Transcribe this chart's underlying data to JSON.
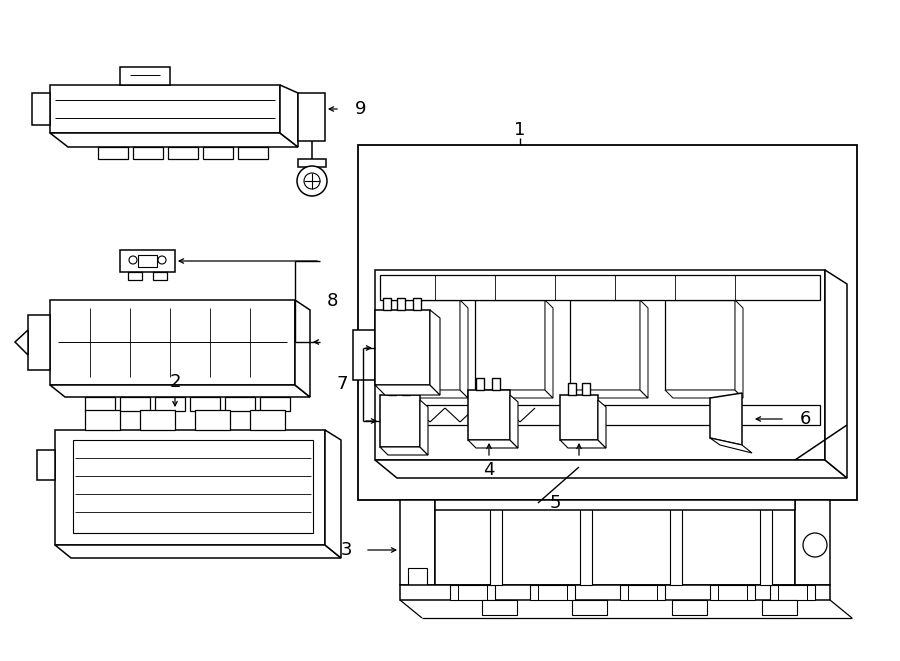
{
  "bg": "#ffffff",
  "lc": "#000000",
  "fig_w": 9.0,
  "fig_h": 6.61,
  "dpi": 100
}
